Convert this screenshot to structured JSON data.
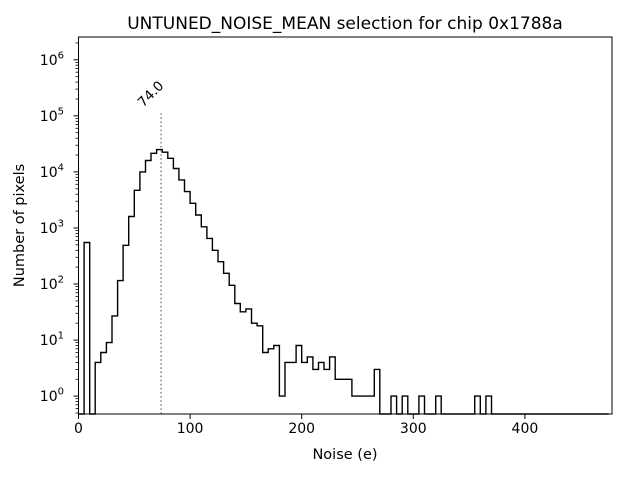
{
  "figure": {
    "background_color": "#ffffff",
    "frame_color": "#000000"
  },
  "chart_data": {
    "type": "bar",
    "style": "step-histogram",
    "title": "UNTUNED_NOISE_MEAN selection for chip 0x1788a",
    "xlabel": "Noise (e)",
    "ylabel": "Number of pixels",
    "grid": false,
    "legend": null,
    "x_axis": {
      "lim": [
        0,
        478
      ],
      "scale": "linear",
      "ticks": [
        0,
        100,
        200,
        300,
        400
      ],
      "tick_labels": [
        "0",
        "100",
        "200",
        "300",
        "400"
      ]
    },
    "y_axis": {
      "lim": [
        0.48,
        2550000
      ],
      "scale": "log",
      "tick_exponents": [
        0,
        1,
        2,
        3,
        4,
        5,
        6
      ],
      "tick_label_base": "10"
    },
    "series": {
      "name": "pixel-noise-histogram",
      "line_color": "#000000",
      "bin_start": 0,
      "bin_width": 5,
      "counts": [
        0,
        550,
        0,
        4,
        6,
        9,
        27,
        115,
        490,
        1600,
        4700,
        10000,
        16000,
        21500,
        25000,
        22500,
        17500,
        11500,
        7200,
        4450,
        2750,
        1700,
        1050,
        650,
        400,
        250,
        155,
        95,
        45,
        32,
        36,
        20,
        18,
        6,
        7,
        8,
        1,
        4,
        4,
        8,
        4,
        5,
        3,
        4,
        3,
        5,
        2,
        2,
        2,
        1,
        1,
        1,
        1,
        3,
        0,
        0,
        1,
        0,
        1,
        0,
        0,
        1,
        0,
        0,
        1,
        0,
        0,
        0,
        0,
        0,
        0,
        1,
        0,
        1,
        0,
        0,
        0,
        0,
        0,
        0,
        0,
        0,
        0,
        0,
        0,
        0,
        0,
        0,
        0,
        0,
        0,
        0,
        0,
        0,
        0
      ]
    },
    "vline": {
      "x": 74.0,
      "label": "74.0",
      "top_value": 110000,
      "color": "#808080",
      "label_color": "#8c8c8c",
      "linestyle": "dotted"
    }
  }
}
